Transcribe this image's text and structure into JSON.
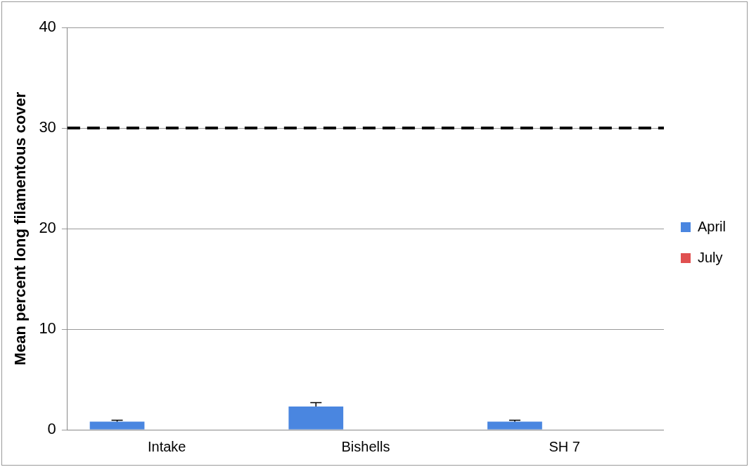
{
  "chart_data": {
    "type": "bar",
    "ylabel": "Mean percent long filamentous cover",
    "categories": [
      "Intake",
      "Bishells",
      "SH 7"
    ],
    "series": [
      {
        "name": "April",
        "color": "#4a86e0",
        "values": [
          0.8,
          2.3,
          0.8
        ],
        "errors": [
          0.15,
          0.4,
          0.15
        ]
      },
      {
        "name": "July",
        "color": "#e05050",
        "values": [
          null,
          null,
          null
        ]
      }
    ],
    "ylim": [
      0,
      40
    ],
    "yticks": [
      0,
      10,
      20,
      30,
      40
    ],
    "grid": "y",
    "legend": "right",
    "ref_lines": [
      {
        "axis": "y",
        "value": 30,
        "color": "#000000",
        "line_style": "dashed"
      }
    ]
  }
}
